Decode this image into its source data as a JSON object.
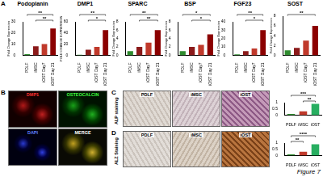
{
  "figure_label": "Figure 7",
  "panel_labels": [
    "A",
    "B",
    "C",
    "D"
  ],
  "images": {
    "B": {
      "tiles": [
        "DMP1",
        "OSTEOCALCIN",
        "DAPI",
        "MERGE"
      ]
    },
    "C": {
      "title": "ALP staining",
      "tiles": [
        "PDLF",
        "iMSC",
        "iOST"
      ]
    },
    "D": {
      "title": "ALZ Staining",
      "tiles": [
        "PDLF",
        "iMSC",
        "iOST"
      ]
    }
  },
  "chart_data": [
    {
      "type": "bar",
      "title": "Podoplanin",
      "y_label": "Fold Change Expression",
      "categories": [
        "PDLF",
        "iMSC",
        "iOST Day7",
        "iOST Day 21"
      ],
      "values": [
        1,
        8,
        10,
        24
      ],
      "colors": [
        "#2e8b2e",
        "#8b1a1a",
        "#c0392b",
        "#8b0000"
      ],
      "ylim": [
        0,
        30
      ],
      "yticks": [
        0,
        10,
        20,
        30
      ],
      "grid": false,
      "annotations": [
        {
          "text": "**",
          "from": 1,
          "to": 3
        },
        {
          "text": "**",
          "from": 0,
          "to": 3
        }
      ]
    },
    {
      "type": "bar",
      "title": "DMP1",
      "y_label": "FOLD CHANGE EXPRESSION",
      "categories": [
        "PDLF",
        "iMSC",
        "iOST Day7",
        "iOST Day 21"
      ],
      "values": [
        1,
        10,
        15,
        45
      ],
      "colors": [
        "#2e8b2e",
        "#8b1a1a",
        "#c0392b",
        "#8b0000"
      ],
      "ylim": [
        0,
        60
      ],
      "yticks": [
        0,
        20,
        40,
        60
      ],
      "grid": false,
      "annotations": [
        {
          "text": "*",
          "from": 1,
          "to": 3
        },
        {
          "text": "**",
          "from": 0,
          "to": 3
        }
      ]
    },
    {
      "type": "bar",
      "title": "SPARC",
      "y_label": "Fold Change Expression",
      "categories": [
        "PDLF",
        "iMSC",
        "iOST Day7",
        "iOST Day 21"
      ],
      "values": [
        1,
        2,
        3,
        6
      ],
      "colors": [
        "#2e8b2e",
        "#8b1a1a",
        "#c0392b",
        "#8b0000"
      ],
      "ylim": [
        0,
        8
      ],
      "yticks": [
        0,
        2,
        4,
        6,
        8
      ],
      "grid": false,
      "annotations": [
        {
          "text": "**",
          "from": 1,
          "to": 3
        },
        {
          "text": "**",
          "from": 0,
          "to": 3
        }
      ]
    },
    {
      "type": "bar",
      "title": "BSP",
      "y_label": "Fold Change Expression",
      "categories": [
        "PDLF",
        "iMSC",
        "iOST Day7",
        "iOST Day 21"
      ],
      "values": [
        1,
        2,
        2.5,
        5
      ],
      "colors": [
        "#2e8b2e",
        "#8b1a1a",
        "#c0392b",
        "#8b0000"
      ],
      "ylim": [
        0,
        8
      ],
      "yticks": [
        0,
        2,
        4,
        6,
        8
      ],
      "grid": false,
      "annotations": [
        {
          "text": "*",
          "from": 1,
          "to": 3
        },
        {
          "text": "*",
          "from": 0,
          "to": 3
        }
      ]
    },
    {
      "type": "bar",
      "title": "FGF23",
      "y_label": "Fold Change Expression",
      "categories": [
        "PDLF",
        "iMSC",
        "iOST Day7",
        "iOST Day 21"
      ],
      "values": [
        1,
        5,
        8,
        30
      ],
      "colors": [
        "#2e8b2e",
        "#8b1a1a",
        "#c0392b",
        "#8b0000"
      ],
      "ylim": [
        0,
        40
      ],
      "yticks": [
        0,
        10,
        20,
        30,
        40
      ],
      "grid": false,
      "annotations": [
        {
          "text": "*",
          "from": 1,
          "to": 3
        },
        {
          "text": "**",
          "from": 0,
          "to": 3
        }
      ]
    },
    {
      "type": "bar",
      "title": "SOST",
      "y_label": "Fold Change Expression",
      "categories": [
        "PDLF",
        "iMSC",
        "iOST Day7",
        "iOST Day 21"
      ],
      "values": [
        1,
        1.5,
        3,
        6
      ],
      "colors": [
        "#2e8b2e",
        "#8b1a1a",
        "#c0392b",
        "#8b0000"
      ],
      "ylim": [
        0,
        8
      ],
      "yticks": [
        0,
        2,
        4,
        6,
        8
      ],
      "grid": false,
      "annotations": [
        {
          "text": "**",
          "from": 0,
          "to": 3
        }
      ]
    },
    {
      "type": "bar",
      "categories": [
        "PDLF",
        "iMSC",
        "iOST"
      ],
      "values": [
        0.1,
        0.3,
        0.9
      ],
      "colors": [
        "#2e8b2e",
        "#c0392b",
        "#27ae60"
      ],
      "ylim": [
        0,
        1
      ],
      "yticks": [
        0,
        0.5,
        1
      ],
      "grid": false,
      "annotations": [
        {
          "text": "**",
          "from": 1,
          "to": 2
        },
        {
          "text": "***",
          "from": 0,
          "to": 2
        }
      ]
    },
    {
      "type": "bar",
      "categories": [
        "PDLF",
        "iMSC",
        "iOST"
      ],
      "values": [
        0.1,
        0.3,
        0.9
      ],
      "colors": [
        "#2e8b2e",
        "#c0392b",
        "#27ae60"
      ],
      "ylim": [
        0,
        1
      ],
      "yticks": [
        0,
        0.5,
        1
      ],
      "grid": false,
      "annotations": [
        {
          "text": "**",
          "from": 0,
          "to": 1
        },
        {
          "text": "****",
          "from": 0,
          "to": 2
        }
      ]
    }
  ]
}
